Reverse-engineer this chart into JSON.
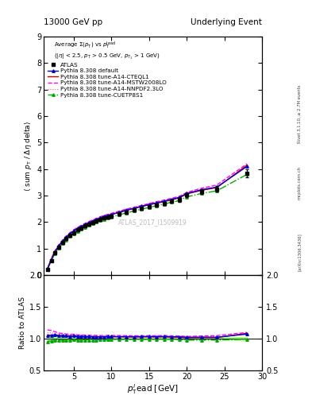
{
  "title_left": "13000 GeV pp",
  "title_right": "Underlying Event",
  "right_label1": "Rivet 3.1.10, ≥ 2.7M events",
  "right_label2": "mcplots.cern.ch",
  "right_label3": "[arXiv:1306.3436]",
  "watermark": "ATLAS_2017_I1509919",
  "ylabel_main": "⟨ sum p_T / Δη delta⟩",
  "ylabel_ratio": "Ratio to ATLAS",
  "xlabel": "p_T^{l}ead [GeV]",
  "xlim": [
    1,
    30
  ],
  "ylim_main": [
    0,
    9
  ],
  "ylim_ratio": [
    0.5,
    2
  ],
  "yticks_main": [
    0,
    1,
    2,
    3,
    4,
    5,
    6,
    7,
    8,
    9
  ],
  "yticks_ratio": [
    0.5,
    1.0,
    1.5,
    2.0
  ],
  "x_data": [
    1.5,
    2.0,
    2.5,
    3.0,
    3.5,
    4.0,
    4.5,
    5.0,
    5.5,
    6.0,
    6.5,
    7.0,
    7.5,
    8.0,
    8.5,
    9.0,
    9.5,
    10.0,
    11.0,
    12.0,
    13.0,
    14.0,
    15.0,
    16.0,
    17.0,
    18.0,
    19.0,
    20.0,
    22.0,
    24.0,
    28.0
  ],
  "atlas_y": [
    0.22,
    0.55,
    0.83,
    1.05,
    1.22,
    1.37,
    1.5,
    1.6,
    1.7,
    1.78,
    1.85,
    1.92,
    1.98,
    2.04,
    2.1,
    2.15,
    2.18,
    2.22,
    2.3,
    2.38,
    2.45,
    2.52,
    2.58,
    2.65,
    2.7,
    2.78,
    2.85,
    3.02,
    3.15,
    3.25,
    3.83
  ],
  "atlas_yerr": [
    0.02,
    0.03,
    0.03,
    0.03,
    0.03,
    0.03,
    0.03,
    0.03,
    0.03,
    0.03,
    0.03,
    0.03,
    0.03,
    0.03,
    0.03,
    0.03,
    0.03,
    0.03,
    0.04,
    0.04,
    0.04,
    0.04,
    0.04,
    0.05,
    0.05,
    0.05,
    0.08,
    0.08,
    0.1,
    0.1,
    0.15
  ],
  "pythia_default_y": [
    0.23,
    0.58,
    0.88,
    1.1,
    1.28,
    1.43,
    1.56,
    1.67,
    1.76,
    1.84,
    1.91,
    1.98,
    2.04,
    2.1,
    2.16,
    2.21,
    2.25,
    2.29,
    2.37,
    2.45,
    2.52,
    2.6,
    2.66,
    2.73,
    2.79,
    2.86,
    2.93,
    3.08,
    3.22,
    3.32,
    4.1
  ],
  "pythia_cteql1_y": [
    0.23,
    0.58,
    0.87,
    1.09,
    1.27,
    1.42,
    1.55,
    1.66,
    1.75,
    1.83,
    1.9,
    1.97,
    2.03,
    2.09,
    2.15,
    2.2,
    2.24,
    2.28,
    2.36,
    2.44,
    2.51,
    2.58,
    2.65,
    2.71,
    2.77,
    2.84,
    2.91,
    3.06,
    3.2,
    3.3,
    4.15
  ],
  "pythia_mstw_y": [
    0.25,
    0.62,
    0.92,
    1.14,
    1.32,
    1.47,
    1.6,
    1.71,
    1.8,
    1.88,
    1.95,
    2.02,
    2.08,
    2.14,
    2.2,
    2.25,
    2.29,
    2.33,
    2.41,
    2.49,
    2.56,
    2.63,
    2.7,
    2.77,
    2.83,
    2.9,
    2.97,
    3.12,
    3.28,
    3.4,
    4.2
  ],
  "pythia_nnpdf_y": [
    0.24,
    0.6,
    0.9,
    1.12,
    1.3,
    1.45,
    1.58,
    1.69,
    1.78,
    1.86,
    1.93,
    2.0,
    2.06,
    2.12,
    2.18,
    2.23,
    2.27,
    2.31,
    2.39,
    2.47,
    2.54,
    2.61,
    2.68,
    2.74,
    2.8,
    2.87,
    2.94,
    3.09,
    3.24,
    3.33,
    4.12
  ],
  "pythia_cuetp_y": [
    0.21,
    0.53,
    0.81,
    1.02,
    1.19,
    1.33,
    1.46,
    1.57,
    1.66,
    1.74,
    1.81,
    1.88,
    1.94,
    2.0,
    2.06,
    2.11,
    2.15,
    2.19,
    2.27,
    2.35,
    2.42,
    2.49,
    2.55,
    2.62,
    2.68,
    2.75,
    2.81,
    2.95,
    3.08,
    3.18,
    3.8
  ],
  "atlas_band_err": [
    0.03,
    0.03,
    0.025,
    0.02,
    0.018,
    0.016,
    0.014,
    0.012,
    0.012,
    0.011,
    0.01,
    0.01,
    0.01,
    0.009,
    0.009,
    0.009,
    0.009,
    0.008,
    0.008,
    0.007,
    0.007,
    0.007,
    0.007,
    0.01,
    0.01,
    0.01,
    0.015,
    0.015,
    0.018,
    0.018,
    0.025
  ],
  "color_atlas": "#000000",
  "color_default": "#0000cc",
  "color_cteql1": "#cc0000",
  "color_mstw": "#ff00ff",
  "color_nnpdf": "#ff44aa",
  "color_cuetp": "#00aa00",
  "color_band": "#aaff88"
}
